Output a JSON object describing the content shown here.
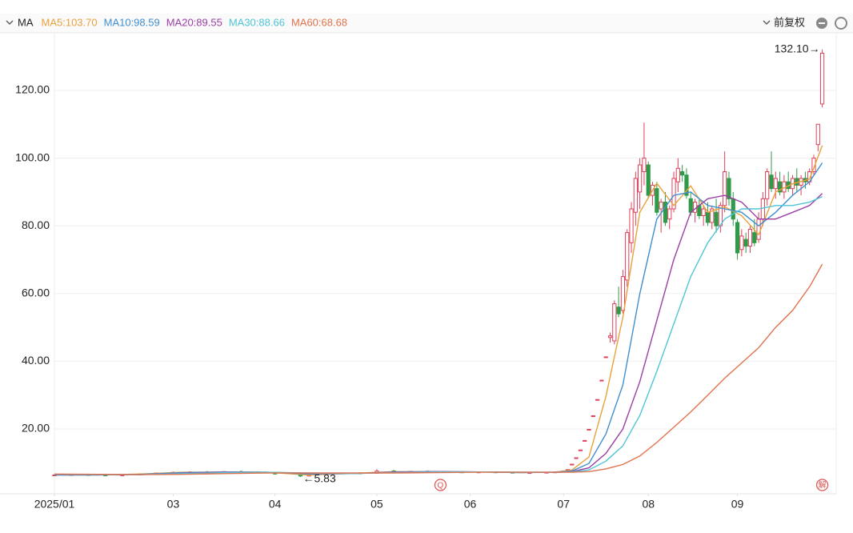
{
  "chart_data": {
    "type": "candlestick",
    "indicator": "MA",
    "adjustment": "前复权",
    "xlim": [
      -1,
      183
    ],
    "xticks": [
      {
        "value": 0,
        "label": "2025/01"
      },
      {
        "value": 28,
        "label": "03"
      },
      {
        "value": 52,
        "label": "04"
      },
      {
        "value": 76,
        "label": "05"
      },
      {
        "value": 98,
        "label": "06"
      },
      {
        "value": 120,
        "label": "07"
      },
      {
        "value": 140,
        "label": "08"
      },
      {
        "value": 161,
        "label": "09"
      }
    ],
    "ylim": [
      0,
      136
    ],
    "yticks": [
      {
        "value": 20,
        "label": "20.00"
      },
      {
        "value": 40,
        "label": "40.00"
      },
      {
        "value": 60,
        "label": "60.00"
      },
      {
        "value": 80,
        "label": "80.00"
      },
      {
        "value": 100,
        "label": "100.00"
      },
      {
        "value": 120,
        "label": "120.00"
      }
    ],
    "grid": true,
    "up_color": "#e0405a",
    "down_color": "#2f9a48",
    "candles": {
      "x": [
        0,
        4,
        8,
        12,
        16,
        20,
        24,
        28,
        32,
        36,
        40,
        44,
        48,
        52,
        58,
        60,
        64,
        68,
        72,
        76,
        80,
        84,
        88,
        92,
        96,
        100,
        104,
        108,
        112,
        116,
        118,
        119,
        120,
        121,
        122,
        123,
        124,
        125,
        126,
        127,
        128,
        129,
        130,
        131,
        132,
        133,
        134,
        135,
        136,
        137,
        138,
        139,
        140,
        141,
        142,
        143,
        144,
        145,
        146,
        147,
        148,
        149,
        150,
        151,
        152,
        153,
        154,
        155,
        156,
        157,
        158,
        159,
        160,
        161,
        162,
        163,
        164,
        165,
        166,
        167,
        168,
        169,
        170,
        171,
        172,
        173,
        174,
        175,
        176,
        177,
        178,
        179,
        180,
        181
      ],
      "open": [
        6.3,
        6.4,
        6.5,
        6.4,
        6.3,
        6.4,
        6.7,
        7.0,
        7.2,
        7.3,
        7.2,
        7.4,
        7.3,
        7.1,
        6.6,
        6.1,
        6.5,
        6.8,
        7.0,
        6.9,
        7.6,
        7.4,
        7.5,
        7.4,
        7.3,
        7.2,
        7.3,
        7.2,
        7.0,
        7.1,
        7.2,
        7.3,
        7.4,
        8.0,
        9.6,
        11.5,
        13.8,
        16.6,
        19.9,
        23.9,
        28.7,
        34.4,
        41.3,
        47,
        46,
        56,
        55,
        64,
        75,
        84,
        90,
        96,
        98,
        89,
        91,
        85,
        87,
        82,
        85,
        93,
        96,
        95,
        88,
        84,
        86,
        83,
        84,
        81,
        84,
        80,
        86,
        94,
        88,
        81,
        73,
        76,
        74,
        78,
        76,
        82,
        88,
        95,
        91,
        93,
        90,
        93,
        91,
        94,
        92,
        94,
        93,
        96,
        104,
        116
      ],
      "high": [
        6.6,
        6.7,
        6.8,
        6.6,
        6.5,
        6.8,
        7.1,
        7.4,
        7.5,
        7.6,
        7.5,
        7.7,
        7.5,
        7.3,
        6.8,
        6.6,
        6.9,
        7.1,
        7.2,
        8.1,
        7.9,
        7.6,
        7.7,
        7.6,
        7.5,
        7.4,
        7.5,
        7.3,
        7.2,
        7.3,
        7.4,
        7.5,
        7.7,
        8.0,
        9.6,
        11.5,
        13.8,
        16.6,
        19.9,
        23.9,
        28.7,
        34.4,
        41.3,
        48.5,
        58,
        62,
        67,
        79,
        87,
        96,
        100,
        110.5,
        99,
        93,
        93,
        88,
        90,
        86,
        96,
        100,
        98,
        97,
        90,
        88,
        88,
        86,
        87,
        86,
        88,
        87,
        102,
        96,
        90,
        82,
        79,
        78,
        80,
        82,
        84,
        90,
        97,
        102,
        96,
        96,
        95,
        96,
        95,
        97,
        95,
        96,
        97,
        101,
        110,
        132.1
      ],
      "low": [
        6.1,
        6.2,
        6.3,
        6.2,
        6.1,
        6.3,
        6.6,
        6.8,
        7.0,
        7.1,
        7.0,
        7.2,
        7.0,
        6.6,
        5.83,
        6.0,
        6.4,
        6.6,
        6.8,
        6.8,
        7.3,
        7.2,
        7.3,
        7.2,
        7.1,
        7.0,
        7.1,
        6.9,
        6.8,
        7.0,
        7.0,
        7.2,
        7.3,
        8.0,
        9.6,
        11.5,
        13.8,
        16.6,
        19.9,
        23.9,
        28.7,
        34.4,
        41.3,
        45.5,
        45,
        53,
        54,
        62,
        72,
        80,
        85,
        92,
        88,
        86,
        83,
        78,
        80,
        79,
        84,
        90,
        93,
        88,
        83,
        81,
        82,
        80,
        80,
        79,
        78,
        78,
        84,
        86,
        80,
        70,
        71,
        72,
        72,
        74,
        75,
        80,
        86,
        90,
        88,
        89,
        88,
        90,
        89,
        90,
        89,
        91,
        92,
        95,
        102,
        115
      ],
      "close": [
        6.4,
        6.5,
        6.4,
        6.3,
        6.4,
        6.7,
        7.0,
        7.2,
        7.3,
        7.2,
        7.4,
        7.3,
        7.1,
        6.7,
        6.1,
        6.5,
        6.8,
        7.0,
        6.9,
        7.6,
        7.4,
        7.5,
        7.4,
        7.3,
        7.2,
        7.3,
        7.2,
        7.0,
        7.1,
        7.2,
        7.3,
        7.4,
        7.6,
        8.0,
        9.6,
        11.5,
        13.8,
        16.6,
        19.9,
        23.9,
        28.7,
        34.4,
        41.3,
        47.5,
        57,
        54,
        65,
        78,
        85,
        94,
        98,
        100,
        89,
        92,
        84,
        87,
        81,
        85,
        94,
        97,
        95,
        89,
        84,
        87,
        83,
        85,
        81,
        85,
        80,
        86,
        96,
        88,
        82,
        72,
        77,
        74,
        79,
        75,
        82,
        88,
        96,
        91,
        94,
        90,
        93,
        91,
        94,
        92,
        94,
        93,
        96,
        100,
        110,
        131
      ]
    },
    "ma_x": [
      0,
      10,
      20,
      30,
      40,
      50,
      60,
      70,
      80,
      90,
      100,
      110,
      118,
      122,
      126,
      130,
      134,
      138,
      142,
      146,
      150,
      154,
      158,
      162,
      166,
      170,
      174,
      178,
      181
    ],
    "series": [
      {
        "name": "MA5:103.70",
        "color": "#e8a23c",
        "values": [
          6.4,
          6.4,
          6.7,
          7.2,
          7.3,
          7.2,
          6.4,
          6.9,
          7.4,
          7.4,
          7.3,
          7.1,
          7.2,
          7.9,
          11.7,
          29.6,
          53,
          84,
          92.6,
          86,
          91.8,
          84,
          85.6,
          83,
          77.4,
          90,
          92.4,
          93.8,
          103.7
        ]
      },
      {
        "name": "MA10:98.59",
        "color": "#3f8fd0",
        "values": [
          6.4,
          6.4,
          6.6,
          7.1,
          7.3,
          7.2,
          6.7,
          6.8,
          7.3,
          7.4,
          7.3,
          7.1,
          7.2,
          7.6,
          9.8,
          18.5,
          33,
          60,
          82,
          89,
          90,
          86,
          85,
          84,
          80,
          84,
          89,
          93,
          98.59
        ]
      },
      {
        "name": "MA20:89.55",
        "color": "#9b3fa6",
        "values": [
          6.5,
          6.5,
          6.5,
          6.9,
          7.2,
          7.2,
          6.9,
          6.8,
          7.2,
          7.4,
          7.3,
          7.2,
          7.2,
          7.4,
          8.5,
          12.8,
          20,
          34,
          52,
          70,
          84,
          88,
          89,
          87,
          82,
          82,
          84,
          86,
          89.55
        ]
      },
      {
        "name": "MA30:88.66",
        "color": "#4fc5d6",
        "values": [
          6.6,
          6.5,
          6.5,
          6.8,
          7.1,
          7.2,
          7.0,
          6.8,
          7.1,
          7.3,
          7.3,
          7.2,
          7.2,
          7.3,
          7.9,
          10.5,
          15,
          24,
          37,
          51,
          65,
          75,
          82,
          85,
          85,
          86,
          86,
          87,
          88.66
        ]
      },
      {
        "name": "MA60:68.68",
        "color": "#e0734d",
        "values": [
          6.7,
          6.6,
          6.5,
          6.6,
          6.8,
          7.0,
          7.0,
          7.0,
          7.0,
          7.1,
          7.2,
          7.2,
          7.2,
          7.2,
          7.4,
          8.2,
          9.5,
          12,
          16,
          20.5,
          25,
          30,
          35,
          39.5,
          44,
          50,
          55,
          62,
          68.68
        ]
      }
    ],
    "annotations": [
      {
        "text": "132.10→",
        "x": 181,
        "y": 132.1
      },
      {
        "text": "←5.83",
        "x": 58,
        "y": 5.83
      }
    ],
    "markers": [
      {
        "x": 91,
        "label": "Q"
      },
      {
        "x": 181,
        "label": "解"
      }
    ]
  }
}
